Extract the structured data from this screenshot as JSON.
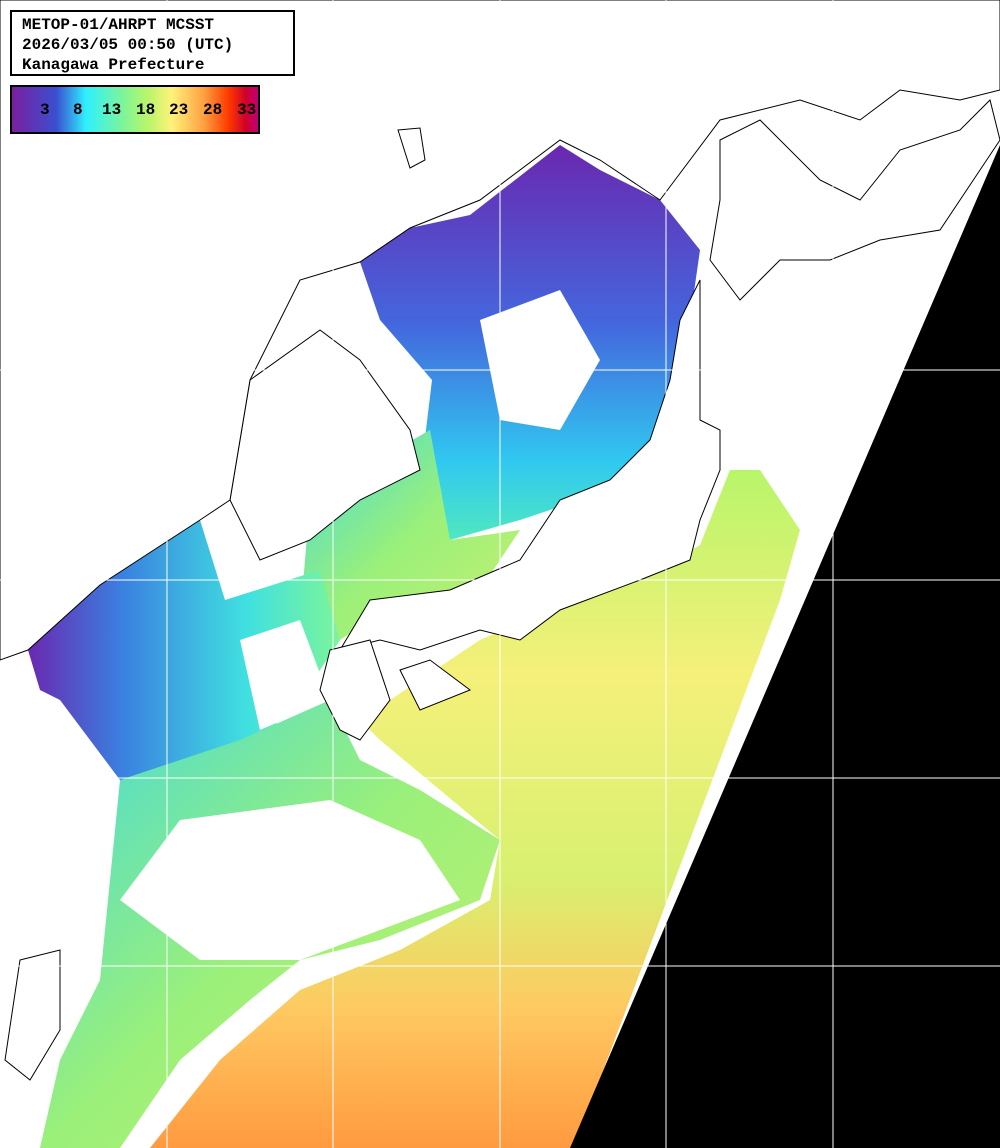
{
  "header": {
    "line1": "METOP-01/AHRPT MCSST",
    "line2": "2026/03/05 00:50 (UTC)",
    "line3": "Kanagawa Prefecture"
  },
  "colorbar": {
    "ticks": [
      "3",
      "8",
      "13",
      "18",
      "23",
      "28",
      "33"
    ],
    "colors": [
      "#7a1fa0",
      "#3b4fd0",
      "#2ef0ff",
      "#7cf59a",
      "#fff27a",
      "#ffa040",
      "#d0002a"
    ]
  },
  "map": {
    "land_color": "#ffffff",
    "no_data_color": "#000000",
    "grid_color": "#ffffff"
  }
}
